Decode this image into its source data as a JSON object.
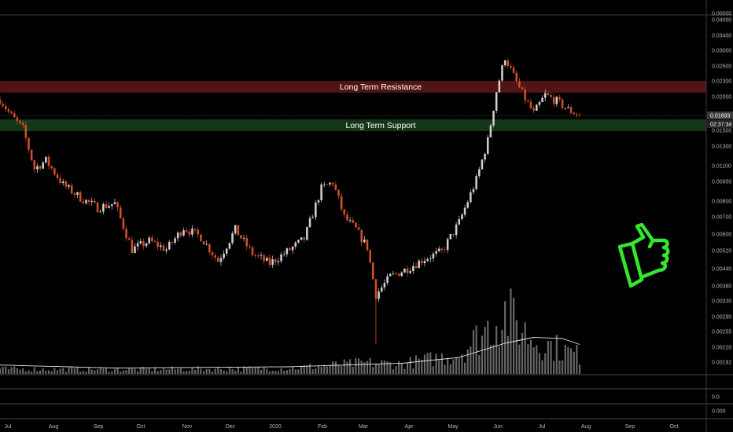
{
  "colors": {
    "background": "#000000",
    "up_candle": "#cfcfcf",
    "down_candle": "#d2502b",
    "resistance_zone": "#5a1616",
    "support_zone": "#163a1a",
    "volume_bar": "#8a8a8a",
    "volume_ma": "#e6e6e6",
    "thumbs_up": "#33e62e"
  },
  "annotations": {
    "resistance_label": "Long Term Resistance",
    "support_label": "Long Term Support",
    "price_tag": "0.01693",
    "countdown_tag": "02:37:34",
    "thumbs_up_icon": "thumbs-up-icon"
  },
  "chart_data": {
    "type": "candlestick",
    "scale": "log",
    "grid": false,
    "x_ticks": [
      "Jul",
      "Aug",
      "Sep",
      "Oct",
      "Nov",
      "Dec",
      "2020",
      "Feb",
      "Mar",
      "Apr",
      "May",
      "Jun",
      "Jul",
      "Aug",
      "Sep",
      "Oct"
    ],
    "y_ticks": [
      "0.00000",
      "0.04000",
      "0.03400",
      "0.03000",
      "0.02600",
      "0.02300",
      "0.02000",
      "0.01700",
      "0.01500",
      "0.01300",
      "0.01100",
      "0.00950",
      "0.00800",
      "0.00700",
      "0.00600",
      "0.00520",
      "0.00440",
      "0.00380",
      "0.00330",
      "0.00290",
      "0.00255",
      "0.00220",
      "0.00192"
    ],
    "indicator_ticks": [
      "0.0",
      "0.000"
    ],
    "resistance_zone": [
      0.0215,
      0.0235
    ],
    "support_zone": [
      0.0155,
      0.0165
    ],
    "last_price": 0.01693,
    "price_path": [
      {
        "t": 0,
        "p": 0.0195
      },
      {
        "t": 4,
        "p": 0.0168
      },
      {
        "t": 8,
        "p": 0.015
      },
      {
        "t": 12,
        "p": 0.0105
      },
      {
        "t": 16,
        "p": 0.0113
      },
      {
        "t": 22,
        "p": 0.0091
      },
      {
        "t": 28,
        "p": 0.0081
      },
      {
        "t": 34,
        "p": 0.0074
      },
      {
        "t": 40,
        "p": 0.0077
      },
      {
        "t": 46,
        "p": 0.0051
      },
      {
        "t": 52,
        "p": 0.0055
      },
      {
        "t": 58,
        "p": 0.0051
      },
      {
        "t": 64,
        "p": 0.0062
      },
      {
        "t": 70,
        "p": 0.0057
      },
      {
        "t": 76,
        "p": 0.0046
      },
      {
        "t": 82,
        "p": 0.0061
      },
      {
        "t": 88,
        "p": 0.0049
      },
      {
        "t": 94,
        "p": 0.0045
      },
      {
        "t": 100,
        "p": 0.005
      },
      {
        "t": 106,
        "p": 0.0056
      },
      {
        "t": 112,
        "p": 0.0088
      },
      {
        "t": 116,
        "p": 0.0093
      },
      {
        "t": 120,
        "p": 0.0068
      },
      {
        "t": 124,
        "p": 0.0061
      },
      {
        "t": 128,
        "p": 0.0052
      },
      {
        "t": 131,
        "p": 0.0034
      },
      {
        "t": 136,
        "p": 0.004
      },
      {
        "t": 142,
        "p": 0.0043
      },
      {
        "t": 148,
        "p": 0.0047
      },
      {
        "t": 154,
        "p": 0.005
      },
      {
        "t": 160,
        "p": 0.0065
      },
      {
        "t": 166,
        "p": 0.0095
      },
      {
        "t": 170,
        "p": 0.0135
      },
      {
        "t": 173,
        "p": 0.021
      },
      {
        "t": 176,
        "p": 0.0285
      },
      {
        "t": 179,
        "p": 0.024
      },
      {
        "t": 182,
        "p": 0.0205
      },
      {
        "t": 186,
        "p": 0.0172
      },
      {
        "t": 190,
        "p": 0.0203
      },
      {
        "t": 194,
        "p": 0.0192
      },
      {
        "t": 198,
        "p": 0.0178
      },
      {
        "t": 202,
        "p": 0.0169
      }
    ],
    "volume_profile": [
      {
        "t": 0,
        "v": 0.08
      },
      {
        "t": 40,
        "v": 0.07
      },
      {
        "t": 100,
        "v": 0.09
      },
      {
        "t": 128,
        "v": 0.18
      },
      {
        "t": 140,
        "v": 0.16
      },
      {
        "t": 160,
        "v": 0.32
      },
      {
        "t": 170,
        "v": 0.75
      },
      {
        "t": 176,
        "v": 1.0
      },
      {
        "t": 186,
        "v": 0.55
      },
      {
        "t": 202,
        "v": 0.3
      }
    ],
    "volume_ma": [
      {
        "t": 0,
        "v": 0.15
      },
      {
        "t": 40,
        "v": 0.1
      },
      {
        "t": 100,
        "v": 0.12
      },
      {
        "t": 140,
        "v": 0.18
      },
      {
        "t": 160,
        "v": 0.28
      },
      {
        "t": 176,
        "v": 0.52
      },
      {
        "t": 186,
        "v": 0.62
      },
      {
        "t": 196,
        "v": 0.6
      },
      {
        "t": 202,
        "v": 0.5
      }
    ]
  }
}
